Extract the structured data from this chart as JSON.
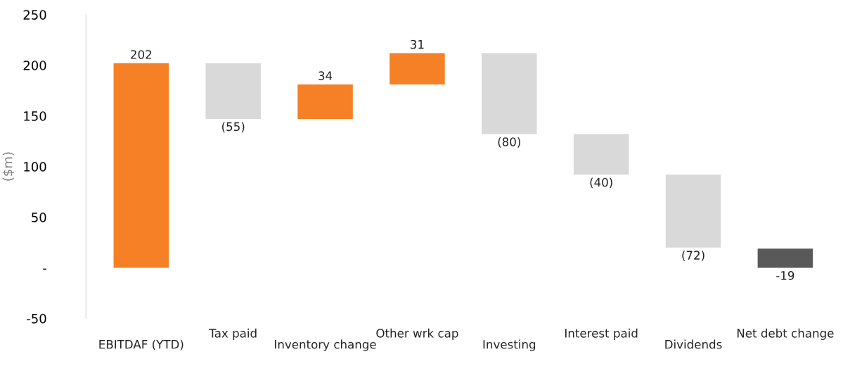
{
  "chart_data": {
    "type": "bar",
    "ylabel": "($m)",
    "categories": [
      "EBITDAF (YTD)",
      "Tax paid",
      "Inventory change",
      "Other wrk cap",
      "Investing",
      "Interest paid",
      "Dividends",
      "Net debt change"
    ],
    "values": [
      202,
      -55,
      34,
      31,
      -80,
      -40,
      -72,
      -19
    ],
    "base": [
      0,
      202,
      147,
      181,
      212,
      132,
      92,
      19
    ],
    "colors": [
      "#f58025",
      "#d9d9d9",
      "#f58025",
      "#f58025",
      "#d9d9d9",
      "#d9d9d9",
      "#d9d9d9",
      "#595959"
    ],
    "value_labels": [
      "202",
      "(55)",
      "34",
      "31",
      "(80)",
      "(40)",
      "(72)",
      "-19"
    ],
    "ylim": [
      -50,
      250
    ],
    "yticks": [
      -50,
      {
        "value": 0,
        "label": "-"
      },
      50,
      100,
      150,
      200,
      250
    ],
    "grid": false,
    "legend": false
  }
}
